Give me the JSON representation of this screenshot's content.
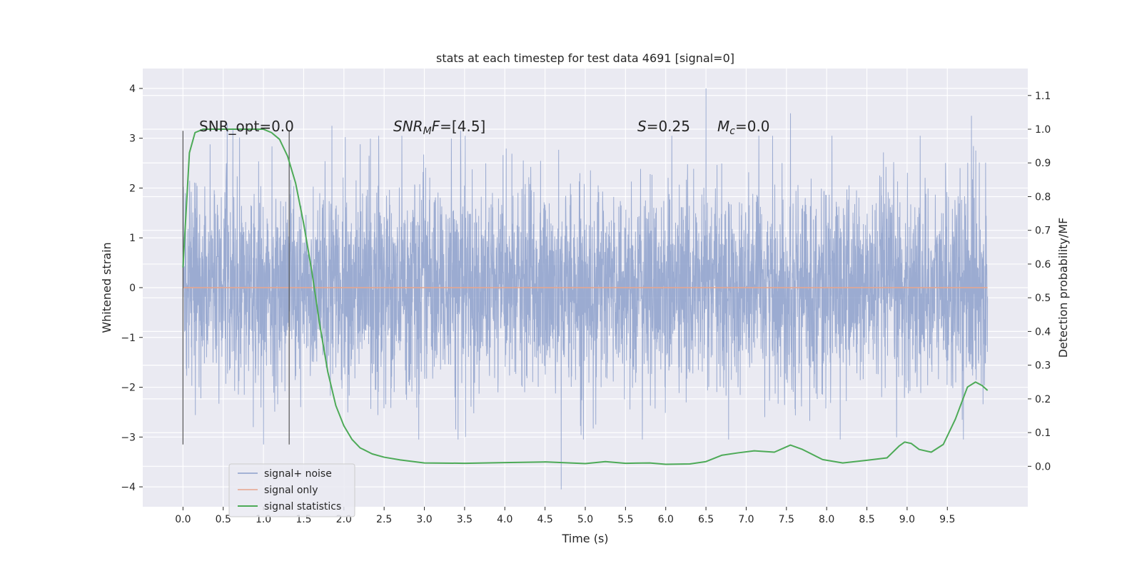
{
  "chart_data": {
    "type": "line",
    "title": "stats at each timestep for test data 4691 [signal=0]",
    "xlabel": "Time (s)",
    "ylabel": "Whitened strain",
    "y2label": "Detection probability/MF",
    "xlim": [
      -0.5,
      10.5
    ],
    "ylim": [
      -4.4,
      4.4
    ],
    "y2lim": [
      -0.12,
      1.18
    ],
    "x_ticks": [
      "0.0",
      "0.5",
      "1.0",
      "1.5",
      "2.0",
      "2.5",
      "3.0",
      "3.5",
      "4.0",
      "4.5",
      "5.0",
      "5.5",
      "6.0",
      "6.5",
      "7.0",
      "7.5",
      "8.0",
      "8.5",
      "9.0",
      "9.5"
    ],
    "y_ticks": [
      "4",
      "3",
      "2",
      "1",
      "0",
      "−1",
      "−2",
      "−3",
      "−4"
    ],
    "y2_ticks": [
      "1.1",
      "1.0",
      "0.9",
      "0.8",
      "0.7",
      "0.6",
      "0.5",
      "0.4",
      "0.3",
      "0.2",
      "0.1",
      "0.0"
    ],
    "grid": true,
    "legend_position": "lower-left",
    "annotations": {
      "snr_opt": "SNR_opt=0.0",
      "snr_mf": "=[4.5]",
      "s": "=0.25",
      "mc": "=0.0"
    },
    "vlines": [
      0.0,
      1.32
    ],
    "vline_ylim": [
      -3.15,
      3.15
    ],
    "series": [
      {
        "name": "signal+ noise",
        "color": "#8da0cb",
        "t_range": [
          0.0,
          10.0
        ],
        "n_points": 4096,
        "amplitude_envelope": [
          -4.05,
          4.0
        ],
        "representative_peaks": [
          {
            "x": 0.55,
            "y": 3.3
          },
          {
            "x": 0.62,
            "y": 3.2
          },
          {
            "x": 1.0,
            "y": -3.15
          },
          {
            "x": 1.85,
            "y": 3.25
          },
          {
            "x": 3.45,
            "y": 3.15
          },
          {
            "x": 3.42,
            "y": -3.05
          },
          {
            "x": 4.7,
            "y": -4.05
          },
          {
            "x": 6.5,
            "y": 4.0
          },
          {
            "x": 7.55,
            "y": 3.5
          },
          {
            "x": 9.8,
            "y": 3.45
          },
          {
            "x": 9.7,
            "y": -3.05
          }
        ]
      },
      {
        "name": "signal only",
        "color": "#e8a58c",
        "x": [
          0.0,
          10.0
        ],
        "y": [
          0.0,
          0.0
        ]
      },
      {
        "name": "signal statistics",
        "color": "#4daa57",
        "axis": "right",
        "x": [
          0.0,
          0.08,
          0.15,
          0.25,
          0.4,
          0.6,
          0.8,
          1.0,
          1.1,
          1.2,
          1.3,
          1.4,
          1.5,
          1.6,
          1.7,
          1.8,
          1.9,
          2.0,
          2.1,
          2.2,
          2.35,
          2.5,
          2.7,
          3.0,
          3.5,
          4.0,
          4.5,
          5.0,
          5.25,
          5.5,
          5.8,
          6.0,
          6.3,
          6.5,
          6.7,
          6.9,
          7.1,
          7.35,
          7.55,
          7.7,
          7.95,
          8.2,
          8.5,
          8.75,
          8.9,
          8.97,
          9.05,
          9.15,
          9.3,
          9.45,
          9.6,
          9.75,
          9.85,
          9.93,
          10.0
        ],
        "y": [
          0.59,
          0.93,
          0.99,
          1.0,
          1.0,
          1.0,
          1.0,
          1.0,
          0.99,
          0.97,
          0.92,
          0.84,
          0.72,
          0.58,
          0.42,
          0.28,
          0.18,
          0.12,
          0.08,
          0.055,
          0.037,
          0.027,
          0.019,
          0.01,
          0.009,
          0.011,
          0.013,
          0.008,
          0.014,
          0.009,
          0.01,
          0.006,
          0.007,
          0.014,
          0.033,
          0.04,
          0.046,
          0.042,
          0.063,
          0.05,
          0.02,
          0.01,
          0.018,
          0.025,
          0.06,
          0.072,
          0.068,
          0.05,
          0.042,
          0.065,
          0.14,
          0.235,
          0.25,
          0.24,
          0.225
        ]
      }
    ]
  }
}
